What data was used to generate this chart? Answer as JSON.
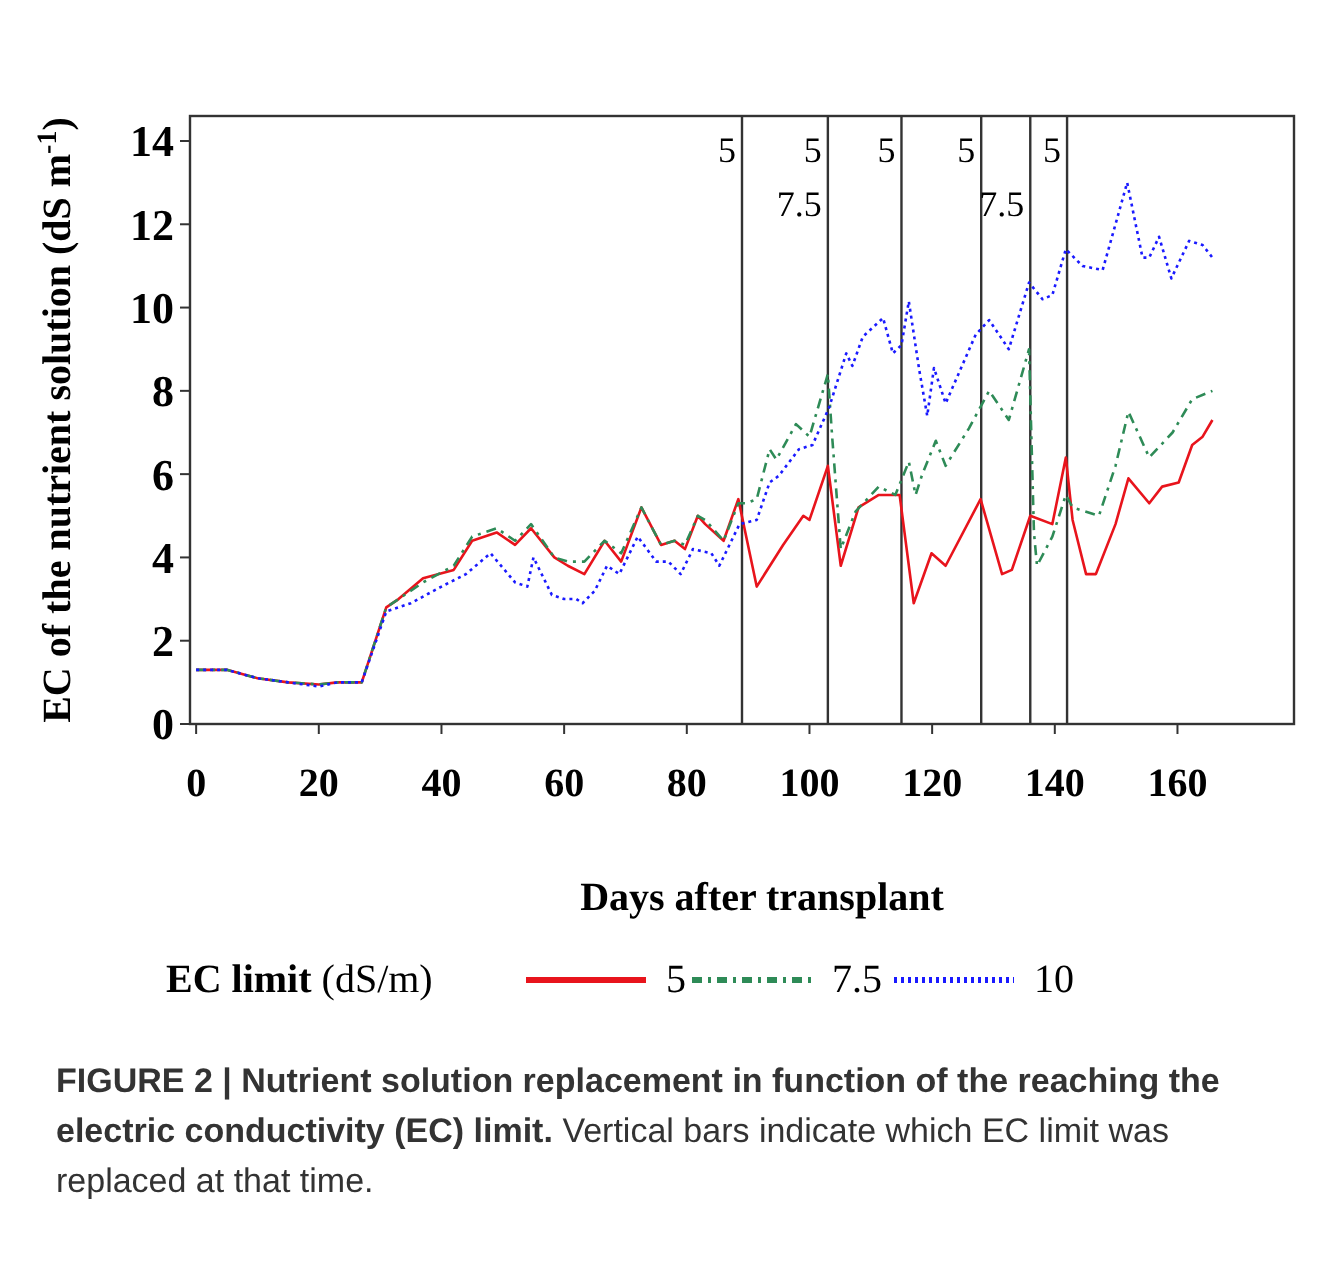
{
  "chart_data": {
    "type": "line",
    "title": "FIGURE 2 | Nutrient solution replacement in function of the reaching the electric conductivity (EC) limit.",
    "annotations": [
      "Vertical bars indicate which EC limit was replaced at that time.",
      {
        "text": "5",
        "x": 89,
        "y": 13.8
      },
      {
        "text": "5",
        "x": 103,
        "y": 13.8
      },
      {
        "text": "7.5",
        "x": 103,
        "y": 12.5
      },
      {
        "text": "5",
        "x": 115,
        "y": 13.8
      },
      {
        "text": "5",
        "x": 128,
        "y": 13.8
      },
      {
        "text": "7.5",
        "x": 136,
        "y": 12.5
      },
      {
        "text": "5",
        "x": 142,
        "y": 13.8
      }
    ],
    "xlabel": "Days after transplant",
    "ylabel": "EC of the nutrient solution (dS m$^{-1}$)",
    "legend_title": "EC limit (dS/m)",
    "legend": "bottom",
    "xlim": [
      -1,
      179
    ],
    "xticks": [
      0,
      20,
      40,
      60,
      80,
      100,
      120,
      140,
      160
    ],
    "ylim": [
      0,
      14.6
    ],
    "yticks": [
      0,
      2,
      4,
      6,
      8,
      10,
      12,
      14
    ],
    "grid": false,
    "ref_lines": [
      {
        "axis": "x",
        "value": 89
      },
      {
        "axis": "x",
        "value": 103
      },
      {
        "axis": "x",
        "value": 115
      },
      {
        "axis": "x",
        "value": 128
      },
      {
        "axis": "x",
        "value": 136
      },
      {
        "axis": "x",
        "value": 142
      }
    ],
    "series": [
      {
        "name": "5",
        "color": "#e8141c",
        "line_style": "solid",
        "x": [
          0,
          5,
          10,
          15,
          20,
          23,
          27,
          31,
          33,
          37,
          42,
          45,
          49,
          52,
          54.6,
          58.4,
          60.6,
          63.3,
          66.6,
          69.3,
          72.6,
          75.8,
          78,
          79.7,
          81.8,
          83,
          86,
          88.4,
          91.4,
          95.7,
          99,
          100,
          103,
          105.1,
          108,
          111.3,
          114.7,
          117,
          119.9,
          122.2,
          127.9,
          131.4,
          133,
          136,
          139.6,
          141.8,
          142.9,
          145.1,
          146.7,
          149.9,
          152,
          155.4,
          157.5,
          160.2,
          162.4,
          164.1,
          165.7
        ],
        "values": [
          1.3,
          1.3,
          1.1,
          1.0,
          0.95,
          1.0,
          1.0,
          2.8,
          3.0,
          3.5,
          3.7,
          4.4,
          4.6,
          4.3,
          4.7,
          4.0,
          3.8,
          3.6,
          4.4,
          3.9,
          5.2,
          4.3,
          4.4,
          4.2,
          5.0,
          4.8,
          4.4,
          5.4,
          3.3,
          4.3,
          5.0,
          4.9,
          6.2,
          3.8,
          5.2,
          5.5,
          5.5,
          2.9,
          4.1,
          3.8,
          5.4,
          3.6,
          3.7,
          5.0,
          4.8,
          6.4,
          4.9,
          3.6,
          3.6,
          4.8,
          5.9,
          5.3,
          5.7,
          5.8,
          6.7,
          6.9,
          7.3
        ]
      },
      {
        "name": "7.5",
        "color": "#2e8b57",
        "line_style": "dashdot",
        "x": [
          0,
          5,
          10,
          15,
          20,
          23,
          27,
          31,
          33,
          37,
          42,
          45,
          49,
          52,
          54.6,
          58.4,
          60.6,
          63.3,
          66.6,
          69.3,
          72.6,
          75.8,
          78,
          79.7,
          81.8,
          83,
          86,
          88.4,
          89.7,
          91.4,
          93.5,
          94.6,
          97.8,
          100,
          103,
          103.7,
          105.1,
          107.5,
          111.3,
          114,
          116.2,
          117.3,
          118.4,
          120.6,
          122.2,
          126,
          129.3,
          132.5,
          135.8,
          136.6,
          137.1,
          139.6,
          141.8,
          142.9,
          147.2,
          149.9,
          152,
          155.4,
          159.2,
          162.4,
          165.7
        ],
        "values": [
          1.3,
          1.3,
          1.1,
          1.0,
          0.95,
          1.0,
          1.0,
          2.8,
          3.0,
          3.4,
          3.8,
          4.5,
          4.7,
          4.4,
          4.8,
          4.0,
          3.9,
          3.9,
          4.4,
          4.1,
          5.2,
          4.3,
          4.4,
          4.3,
          5.0,
          4.9,
          4.4,
          5.3,
          5.3,
          5.4,
          6.6,
          6.35,
          7.2,
          6.9,
          8.4,
          6.9,
          4.2,
          5.1,
          5.7,
          5.5,
          6.3,
          5.5,
          6.0,
          6.8,
          6.2,
          7.1,
          8.0,
          7.3,
          9.0,
          4.6,
          3.8,
          4.5,
          5.5,
          5.2,
          5.0,
          6.2,
          7.5,
          6.4,
          7.0,
          7.8,
          8.0
        ]
      },
      {
        "name": "10",
        "color": "#1a1aff",
        "line_style": "dotted",
        "x": [
          0,
          5,
          10,
          15,
          20,
          23,
          27,
          31,
          35,
          40,
          44,
          48,
          52,
          54,
          55,
          58,
          60,
          62,
          63,
          65,
          67,
          69,
          72,
          75,
          77,
          79,
          81,
          84,
          85.3,
          88.6,
          91.4,
          93.5,
          95,
          98.3,
          100.5,
          103.2,
          106,
          107,
          108.7,
          112,
          113.6,
          115,
          116.2,
          117.9,
          119.2,
          120.3,
          122.2,
          127.1,
          129.3,
          132.5,
          135.8,
          138,
          139.6,
          141.8,
          144.5,
          147.8,
          151.8,
          154.3,
          155.4,
          157,
          159,
          161.9,
          164.1,
          165.7
        ],
        "values": [
          1.3,
          1.3,
          1.1,
          1.0,
          0.9,
          1.0,
          1.0,
          2.7,
          2.9,
          3.3,
          3.6,
          4.1,
          3.4,
          3.3,
          4.0,
          3.1,
          3.0,
          3.0,
          2.9,
          3.2,
          3.8,
          3.6,
          4.5,
          3.9,
          3.9,
          3.6,
          4.2,
          4.1,
          3.8,
          4.8,
          4.9,
          5.8,
          5.96,
          6.6,
          6.7,
          7.6,
          8.9,
          8.6,
          9.3,
          9.75,
          8.9,
          9.1,
          10.15,
          8.5,
          7.4,
          8.55,
          7.7,
          9.35,
          9.7,
          9.0,
          10.6,
          10.2,
          10.3,
          11.4,
          11.0,
          10.9,
          13.0,
          11.2,
          11.2,
          11.7,
          10.7,
          11.6,
          11.5,
          11.2
        ]
      }
    ]
  }
}
